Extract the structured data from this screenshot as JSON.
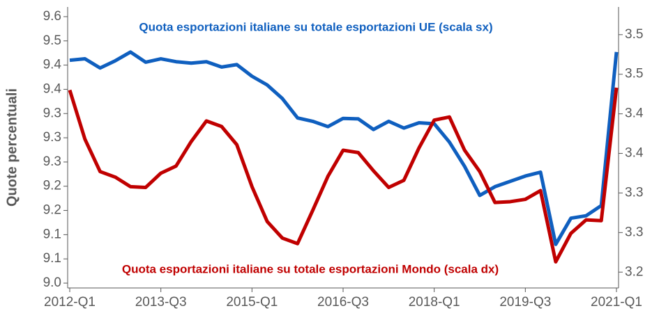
{
  "chart_data": {
    "type": "line",
    "ylabel": "Quote percentuali",
    "annotations": [
      {
        "text": "Quota esportazioni italiane su totale esportazioni UE (scala sx)",
        "color": "#0f5fbf"
      },
      {
        "text": "Quota esportazioni italiane su totale esportazioni Mondo (scala dx)",
        "color": "#c00000"
      }
    ],
    "categories": [
      "2012-Q1",
      null,
      null,
      null,
      null,
      null,
      "2013-Q3",
      null,
      null,
      null,
      null,
      null,
      "2015-Q1",
      null,
      null,
      null,
      null,
      null,
      "2016-Q3",
      null,
      null,
      null,
      null,
      null,
      "2018-Q1",
      null,
      null,
      null,
      null,
      null,
      "2019-Q3",
      null,
      null,
      null,
      null,
      null,
      "2021-Q1"
    ],
    "series": [
      {
        "name": "Quota esportazioni italiane su totale esportazioni UE (scala sx)",
        "color": "#0f5fbf",
        "axis": "y",
        "values": [
          9.46,
          9.463,
          9.444,
          9.459,
          9.477,
          9.456,
          9.463,
          9.457,
          9.454,
          9.457,
          9.446,
          9.451,
          9.427,
          9.409,
          9.381,
          9.341,
          9.334,
          9.323,
          9.34,
          9.339,
          9.317,
          9.334,
          9.32,
          9.331,
          9.329,
          9.291,
          9.241,
          9.181,
          9.199,
          9.21,
          9.221,
          9.229,
          9.08,
          9.134,
          9.139,
          9.16,
          9.477
        ]
      },
      {
        "name": "Quota esportazioni italiane su totale esportazioni Mondo (scala dx)",
        "color": "#c00000",
        "axis": "y2",
        "values": [
          3.43,
          3.368,
          3.327,
          3.32,
          3.308,
          3.307,
          3.325,
          3.334,
          3.365,
          3.391,
          3.384,
          3.361,
          3.308,
          3.264,
          3.243,
          3.236,
          3.278,
          3.321,
          3.354,
          3.351,
          3.328,
          3.307,
          3.316,
          3.357,
          3.392,
          3.396,
          3.354,
          3.327,
          3.288,
          3.289,
          3.292,
          3.303,
          3.213,
          3.249,
          3.266,
          3.265,
          3.433
        ]
      }
    ],
    "ylim": [
      8.99,
      9.57
    ],
    "yticks": [
      {
        "value": 9.0,
        "label": "9.0"
      },
      {
        "value": 9.05,
        "label": "9.1"
      },
      {
        "value": 9.1,
        "label": "9.1"
      },
      {
        "value": 9.15,
        "label": "9.2"
      },
      {
        "value": 9.2,
        "label": "9.2"
      },
      {
        "value": 9.25,
        "label": "9.3"
      },
      {
        "value": 9.3,
        "label": "9.3"
      },
      {
        "value": 9.35,
        "label": "9.3"
      },
      {
        "value": 9.4,
        "label": "9.4"
      },
      {
        "value": 9.45,
        "label": "9.4"
      },
      {
        "value": 9.5,
        "label": "9.5"
      },
      {
        "value": 9.55,
        "label": "9.6"
      }
    ],
    "y2lim": [
      3.18,
      3.535
    ],
    "y2ticks": [
      {
        "value": 3.2,
        "label": "3.2"
      },
      {
        "value": 3.25,
        "label": "3.3"
      },
      {
        "value": 3.3,
        "label": "3.3"
      },
      {
        "value": 3.35,
        "label": "3.4"
      },
      {
        "value": 3.4,
        "label": "3.4"
      },
      {
        "value": 3.45,
        "label": "3.5"
      },
      {
        "value": 3.5,
        "label": "3.5"
      }
    ],
    "grid": false
  }
}
